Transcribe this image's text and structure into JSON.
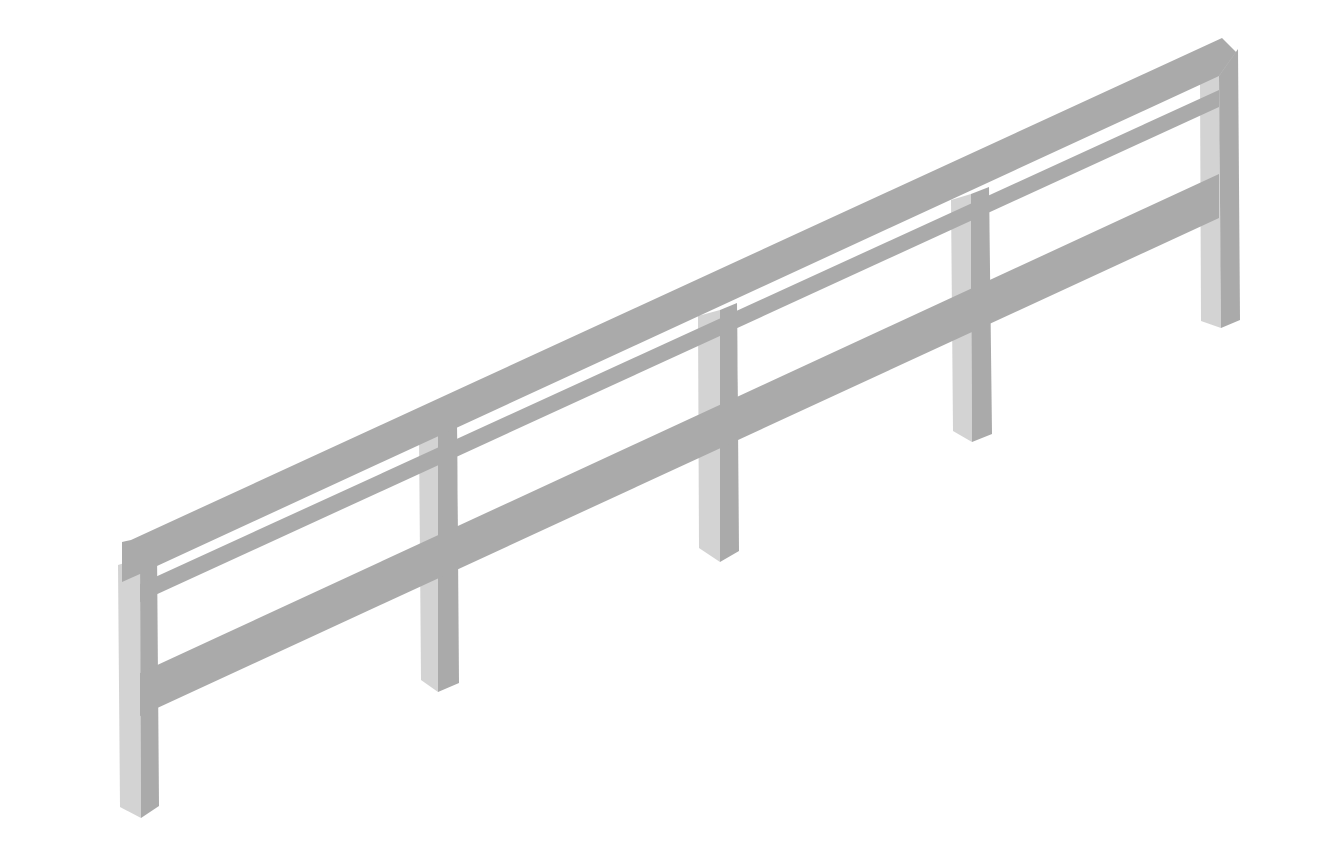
{
  "scene": {
    "subject": "guardrail-isometric",
    "post_count": 5,
    "rail_count": 3,
    "colors": {
      "background": "#ffffff",
      "post_front": "#aaaaaa",
      "post_side": "#d3d3d3",
      "rail": "#aaaaaa",
      "rail_top_edge": "#a6a6a6"
    }
  }
}
